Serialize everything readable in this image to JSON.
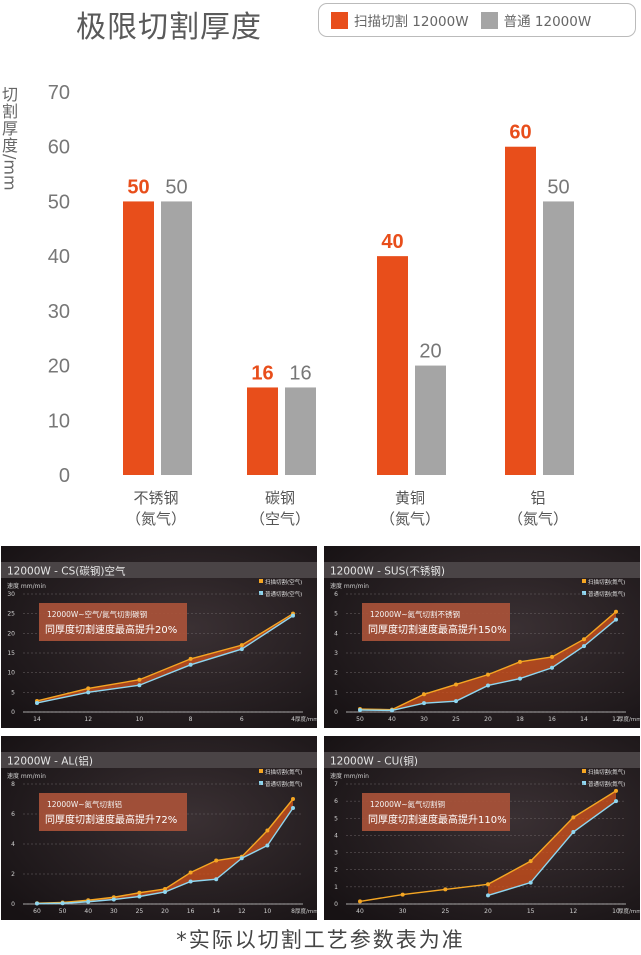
{
  "title": "极限切割厚度",
  "legend": {
    "scan_label": "扫描切割 12000W",
    "normal_label": "普通 12000W",
    "scan_color": "#e84e1b",
    "normal_color": "#a5a5a5"
  },
  "footnote": "*实际以切割工艺参数表为准",
  "chart_data": [
    {
      "type": "bar",
      "title": "极限切割厚度",
      "ylabel": "切割厚度/mm",
      "ylim": [
        0,
        70
      ],
      "yticks": [
        0,
        10,
        20,
        30,
        40,
        50,
        60,
        70
      ],
      "categories": [
        {
          "name": "不锈钢",
          "gas": "（氮气）"
        },
        {
          "name": "碳钢",
          "gas": "（空气）"
        },
        {
          "name": "黄铜",
          "gas": "（氮气）"
        },
        {
          "name": "铝",
          "gas": "（氮气）"
        }
      ],
      "series": [
        {
          "name": "扫描切割 12000W",
          "color": "#e84e1b",
          "values": [
            50,
            16,
            40,
            60
          ]
        },
        {
          "name": "普通 12000W",
          "color": "#a5a5a5",
          "values": [
            50,
            16,
            20,
            50
          ]
        }
      ],
      "grid": false
    },
    {
      "type": "line",
      "title": "12000W - CS(碳钢)空气",
      "ylabel": "速度 mm/min",
      "xlabel": "厚度/mm",
      "x": [
        "14",
        "12",
        "10",
        "8",
        "6",
        "4"
      ],
      "ylim": [
        0,
        30
      ],
      "yticks": [
        0,
        5,
        10,
        15,
        20,
        25,
        30
      ],
      "series": [
        {
          "name": "扫描切割(空气)",
          "color": "#f5a623",
          "values": [
            2.8,
            6,
            8.2,
            13.5,
            17,
            25
          ]
        },
        {
          "name": "普通切割(空气)",
          "color": "#8fd6f0",
          "values": [
            2.3,
            5,
            6.8,
            12,
            16,
            24.5
          ]
        }
      ],
      "annotation": {
        "line1": "12000W~空气/氮气切割碳钢",
        "line2": "同厚度切割速度最高提升20%"
      }
    },
    {
      "type": "line",
      "title": "12000W - SUS(不锈钢)",
      "ylabel": "速度 mm/min",
      "xlabel": "厚度/mm",
      "x": [
        "50",
        "40",
        "30",
        "25",
        "20",
        "18",
        "16",
        "14",
        "12"
      ],
      "ylim": [
        0,
        6
      ],
      "yticks": [
        0,
        1,
        2,
        3,
        4,
        5,
        6
      ],
      "series": [
        {
          "name": "扫描切割(氮气)",
          "color": "#f5a623",
          "values": [
            0.15,
            0.12,
            0.9,
            1.4,
            1.9,
            2.55,
            2.8,
            3.7,
            5.1
          ]
        },
        {
          "name": "普通切割(氮气)",
          "color": "#8fd6f0",
          "values": [
            0.1,
            0.08,
            0.45,
            0.55,
            1.35,
            1.7,
            2.25,
            3.35,
            4.7
          ]
        }
      ],
      "annotation": {
        "line1": "12000W~氮气切割不锈钢",
        "line2": "同厚度切割速度最高提升150%"
      }
    },
    {
      "type": "line",
      "title": "12000W - AL(铝)",
      "ylabel": "速度 mm/min",
      "xlabel": "厚度/mm",
      "x": [
        "60",
        "50",
        "40",
        "30",
        "25",
        "20",
        "16",
        "14",
        "12",
        "10",
        "8"
      ],
      "ylim": [
        0,
        8
      ],
      "yticks": [
        0,
        2,
        4,
        6,
        8
      ],
      "series": [
        {
          "name": "扫描切割(氮气)",
          "color": "#f5a623",
          "values": [
            0.05,
            0.1,
            0.25,
            0.45,
            0.75,
            1.0,
            2.1,
            2.9,
            3.15,
            4.9,
            7.0
          ]
        },
        {
          "name": "普通切割(氮气)",
          "color": "#8fd6f0",
          "values": [
            0.03,
            0.05,
            0.15,
            0.3,
            0.5,
            0.8,
            1.5,
            1.65,
            3.05,
            3.9,
            6.4
          ]
        }
      ],
      "annotation": {
        "line1": "12000W~氮气切割铝",
        "line2": "同厚度切割速度最高提升72%"
      }
    },
    {
      "type": "line",
      "title": "12000W - CU(铜)",
      "ylabel": "速度 mm/min",
      "xlabel": "厚度/mm",
      "x": [
        "40",
        "30",
        "25",
        "20",
        "15",
        "12",
        "10"
      ],
      "ylim": [
        0,
        7
      ],
      "yticks": [
        0,
        1,
        2,
        3,
        4,
        5,
        6,
        7
      ],
      "series": [
        {
          "name": "扫描切割(氮气)",
          "color": "#f5a623",
          "values": [
            0.15,
            0.55,
            0.85,
            1.15,
            2.5,
            5.05,
            6.6
          ]
        },
        {
          "name": "普通切割(氮气)",
          "color": "#8fd6f0",
          "values": [
            null,
            null,
            null,
            0.5,
            1.25,
            4.2,
            6.0
          ]
        }
      ],
      "annotation": {
        "line1": "12000W~氮气切割铜",
        "line2": "同厚度切割速度最高提升110%"
      }
    }
  ]
}
